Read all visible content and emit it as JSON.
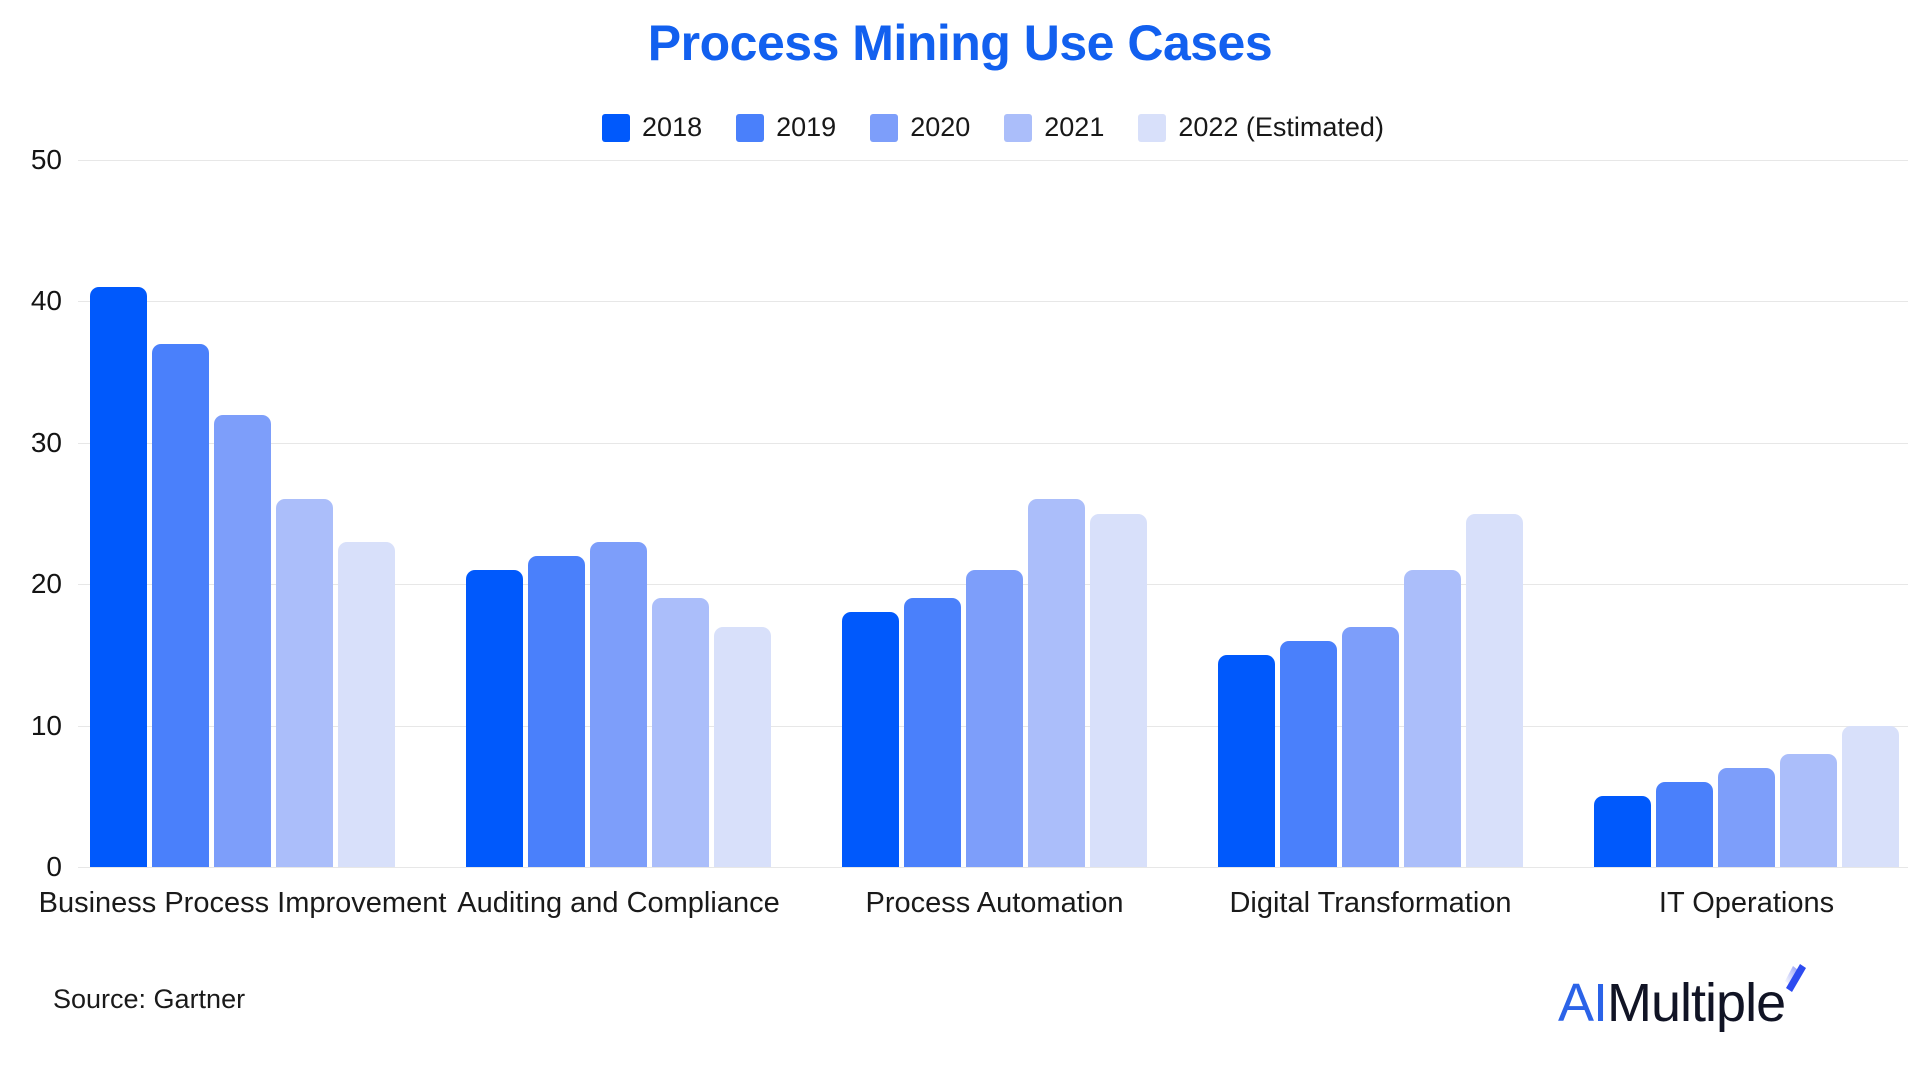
{
  "title": {
    "text": "Process Mining Use Cases",
    "color": "#1260ef"
  },
  "chart_data": {
    "type": "bar",
    "title": "Process Mining Use Cases",
    "categories": [
      "Business Process Improvement",
      "Auditing and Compliance",
      "Process Automation",
      "Digital Transformation",
      "IT Operations"
    ],
    "series": [
      {
        "name": "2018",
        "color": "#0059fc",
        "values": [
          41,
          21,
          18,
          15,
          5
        ]
      },
      {
        "name": "2019",
        "color": "#4a80fb",
        "values": [
          37,
          22,
          19,
          16,
          6
        ]
      },
      {
        "name": "2020",
        "color": "#7d9efa",
        "values": [
          32,
          23,
          21,
          17,
          7
        ]
      },
      {
        "name": "2021",
        "color": "#abbefa",
        "values": [
          26,
          19,
          26,
          21,
          8
        ]
      },
      {
        "name": "2022 (Estimated)",
        "color": "#d8e0fa",
        "values": [
          23,
          17,
          25,
          25,
          10
        ]
      }
    ],
    "ylim": [
      0,
      50
    ],
    "yticks": [
      0,
      10,
      20,
      30,
      40,
      50
    ],
    "grid": true,
    "legend_position": "top",
    "gridline_color": "#e7e7e7"
  },
  "footer": {
    "source": "Source: Gartner",
    "logo": {
      "part1": "AI",
      "part2": "Multiple"
    }
  }
}
